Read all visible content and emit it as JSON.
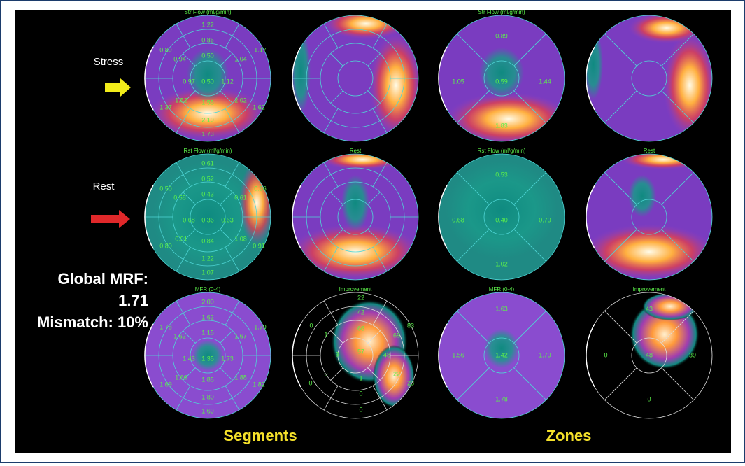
{
  "labels": {
    "stress": "Stress",
    "rest": "Rest",
    "global_mrf": "Global MRF:",
    "global_mrf_value": "1.71",
    "mismatch": "Mismatch: 10%"
  },
  "maps": [
    {
      "title": "Str Flow (ml/g/min)",
      "values": [
        "1.22",
        "0.85",
        "0.50",
        "0.50",
        "0.89",
        "0.94",
        "0.97",
        "1.17",
        "1.04",
        "1.12",
        "1.52",
        "1.55",
        "2.02",
        "1.62",
        "1.37",
        "2.19",
        "1.73"
      ]
    },
    {
      "values": []
    },
    {
      "title": "Str Flow (ml/g/min)",
      "values": [
        "0.89",
        "1.05",
        "0.59",
        "1.44",
        "1.83"
      ]
    },
    {
      "values": []
    },
    {
      "title": "Rst Flow (ml/g/min)",
      "values": [
        "0.61",
        "0.52",
        "0.43",
        "0.36",
        "0.50",
        "0.58",
        "0.68",
        "0.66",
        "0.61",
        "0.63",
        "0.91",
        "0.84",
        "1.08",
        "0.91",
        "0.80",
        "1.22",
        "1.07"
      ]
    },
    {
      "title": "Rest",
      "values": []
    },
    {
      "title": "Rst Flow (ml/g/min)",
      "values": [
        "0.53",
        "0.68",
        "0.40",
        "0.79",
        "1.02"
      ]
    },
    {
      "title": "Rest",
      "values": []
    },
    {
      "title": "MFR (0-4)",
      "values": [
        "2.00",
        "1.62",
        "1.15",
        "1.35",
        "1.78",
        "1.62",
        "1.43",
        "1.79",
        "1.67",
        "1.73",
        "1.66",
        "1.85",
        "1.88",
        "1.82",
        "1.69",
        "1.80",
        "1.69"
      ]
    },
    {
      "title": "Improvement",
      "values": [
        "22",
        "42",
        "66",
        "57",
        "48",
        "69",
        "83",
        "0",
        "1",
        "3",
        "0",
        "0",
        "1",
        "22",
        "23",
        "0",
        "0"
      ]
    },
    {
      "title": "MFR (0-4)",
      "values": [
        "1.63",
        "1.56",
        "1.42",
        "1.79",
        "1.78"
      ]
    },
    {
      "title": "Improvement",
      "values": [
        "43",
        "0",
        "48",
        "39",
        "0"
      ]
    }
  ],
  "footer": {
    "segments": "Segments",
    "zones": "Zones"
  }
}
